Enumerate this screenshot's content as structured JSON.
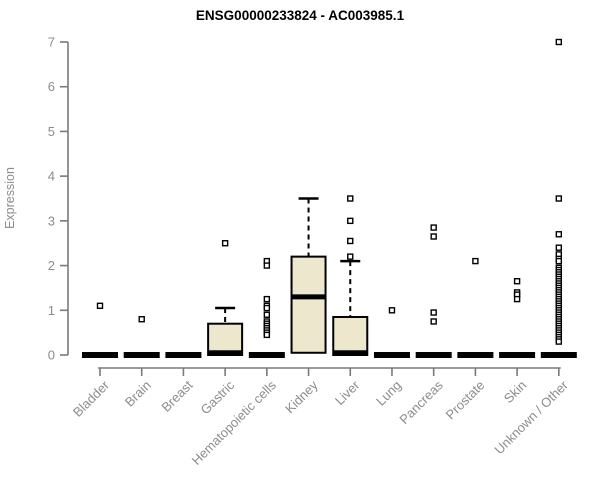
{
  "chart_data": {
    "type": "boxplot",
    "title": "ENSG00000233824 - AC003985.1",
    "ylabel": "Expression",
    "xlabel": "",
    "ylim": [
      0,
      7
    ],
    "yticks": [
      0,
      1,
      2,
      3,
      4,
      5,
      6,
      7
    ],
    "grid": false,
    "legend": null,
    "categories": [
      "Bladder",
      "Brain",
      "Breast",
      "Gastric",
      "Hematopoietic cells",
      "Kidney",
      "Liver",
      "Lung",
      "Pancreas",
      "Prostate",
      "Skin",
      "Unknown / Other"
    ],
    "series": [
      {
        "category": "Bladder",
        "q1": 0,
        "median": 0,
        "q3": 0,
        "whisker_low": 0,
        "whisker_high": 0,
        "outliers": [
          1.1
        ]
      },
      {
        "category": "Brain",
        "q1": 0,
        "median": 0,
        "q3": 0,
        "whisker_low": 0,
        "whisker_high": 0,
        "outliers": [
          0.8
        ]
      },
      {
        "category": "Breast",
        "q1": 0,
        "median": 0,
        "q3": 0,
        "whisker_low": 0,
        "whisker_high": 0,
        "outliers": []
      },
      {
        "category": "Gastric",
        "q1": 0,
        "median": 0.05,
        "q3": 0.7,
        "whisker_low": 0,
        "whisker_high": 1.05,
        "outliers": [
          2.5
        ]
      },
      {
        "category": "Hematopoietic cells",
        "q1": 0,
        "median": 0,
        "q3": 0,
        "whisker_low": 0,
        "whisker_high": 0,
        "outliers": [
          2.1,
          2.0,
          1.25,
          1.1,
          1.05,
          0.9,
          0.75,
          0.7,
          0.65,
          0.6,
          0.55,
          0.5,
          0.45
        ]
      },
      {
        "category": "Kidney",
        "q1": 0.05,
        "median": 1.3,
        "q3": 2.2,
        "whisker_low": 0,
        "whisker_high": 3.5,
        "outliers": []
      },
      {
        "category": "Liver",
        "q1": 0,
        "median": 0.05,
        "q3": 0.85,
        "whisker_low": 0,
        "whisker_high": 2.1,
        "outliers": [
          3.5,
          3.0,
          2.55,
          2.2
        ]
      },
      {
        "category": "Lung",
        "q1": 0,
        "median": 0,
        "q3": 0,
        "whisker_low": 0,
        "whisker_high": 0,
        "outliers": [
          1.0
        ]
      },
      {
        "category": "Pancreas",
        "q1": 0,
        "median": 0,
        "q3": 0,
        "whisker_low": 0,
        "whisker_high": 0,
        "outliers": [
          2.85,
          2.65,
          0.95,
          0.75
        ]
      },
      {
        "category": "Prostate",
        "q1": 0,
        "median": 0,
        "q3": 0,
        "whisker_low": 0,
        "whisker_high": 0,
        "outliers": [
          2.1
        ]
      },
      {
        "category": "Skin",
        "q1": 0,
        "median": 0,
        "q3": 0,
        "whisker_low": 0,
        "whisker_high": 0,
        "outliers": [
          1.65,
          1.4,
          1.35,
          1.25
        ]
      },
      {
        "category": "Unknown / Other",
        "q1": 0,
        "median": 0,
        "q3": 0,
        "whisker_low": 0,
        "whisker_high": 0,
        "outliers": [
          7.0,
          3.5,
          2.7,
          2.4,
          2.25,
          2.15,
          2.1,
          1.95,
          1.9,
          1.85,
          1.8,
          1.75,
          1.7,
          1.65,
          1.6,
          1.55,
          1.5,
          1.45,
          1.4,
          1.35,
          1.3,
          1.25,
          1.2,
          1.15,
          1.1,
          1.05,
          1.0,
          0.95,
          0.9,
          0.85,
          0.8,
          0.75,
          0.7,
          0.65,
          0.6,
          0.55,
          0.5,
          0.45,
          0.4,
          0.35,
          0.3
        ]
      }
    ]
  },
  "colors": {
    "box_fill": "#EDE8CD",
    "box_stroke": "#000000",
    "median": "#000000",
    "outlier_stroke": "#000000",
    "outlier_fill": "#ffffff",
    "axis_line": "#7a7a7a",
    "tick_label": "#8c8c8c",
    "title": "#000000",
    "background": "#ffffff"
  }
}
